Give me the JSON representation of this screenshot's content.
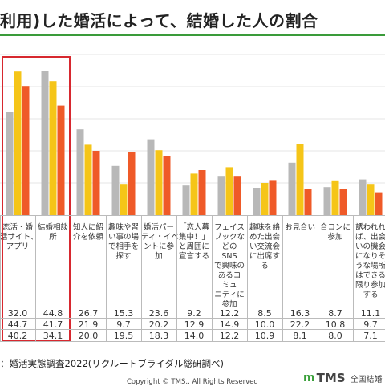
{
  "title": "利用)した婚活によって、結婚した人の割合",
  "source": "：婚活実態調査2022(リクルートブライダル総研調べ)",
  "copyright": "Copyright © TMS., All Rights Reserved",
  "logo": {
    "mark": "m",
    "text": "TMS",
    "sub": "全国結婚"
  },
  "colors": {
    "s1": "#b8b8b8",
    "s2": "#f5c518",
    "s3": "#ef5a28",
    "highlight": "#d7282f",
    "rule": "#3a9b3a"
  },
  "chart_data": {
    "type": "bar",
    "categories": [
      "恋活・婚\n活サイト、\nアプリ",
      "結婚相談\n所",
      "知人に紹\n介を依頼",
      "趣味や習\nい事の場\nで相手を\n探す",
      "婚活パー\nティ・イベ\nントに参\n加",
      "「恋人募\n集中！」\nと周囲に\n宣言する",
      "フェイス\nブックな\nどの\nSNS\nで興味の\nあるコ\nミュ\nニティに\n参加",
      "趣味を絡\nめた出会\nい交流会\nに出席す\nる",
      "お見合い",
      "合コンに\n参加",
      "誘われれ\nば、出会\nいの機会\nになりそ\nうな場所\nはできる\n限り参加\nする"
    ],
    "series": [
      {
        "values": [
          32.0,
          44.8,
          26.7,
          15.3,
          23.6,
          9.2,
          12.2,
          8.5,
          16.3,
          8.7,
          11.1
        ]
      },
      {
        "values": [
          44.7,
          41.7,
          21.9,
          9.7,
          20.2,
          12.9,
          14.9,
          10.0,
          22.2,
          10.8,
          9.7
        ]
      },
      {
        "values": [
          40.2,
          34.1,
          20.0,
          19.5,
          18.3,
          14.0,
          12.2,
          10.9,
          8.1,
          8.0,
          7.1
        ]
      }
    ],
    "value_labels": [
      [
        "32.0",
        "44.8",
        "26.7",
        "15.3",
        "23.6",
        "9.2",
        "12.2",
        "8.5",
        "16.3",
        "8.7",
        "11.1"
      ],
      [
        "44.7",
        "41.7",
        "21.9",
        "9.7",
        "20.2",
        "12.9",
        "14.9",
        "10.0",
        "22.2",
        "10.8",
        "9.7"
      ],
      [
        "40.2",
        "34.1",
        "20.0",
        "19.5",
        "18.3",
        "14.0",
        "12.2",
        "10.9",
        "8.1",
        "8.0",
        "7.1"
      ]
    ],
    "ylim": [
      0,
      50
    ],
    "grid": true,
    "highlight_category": 1
  }
}
